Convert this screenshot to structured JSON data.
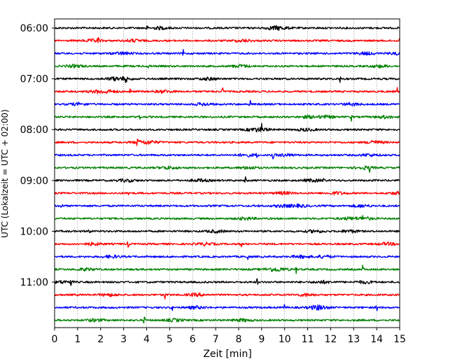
{
  "chart_data": {
    "type": "line",
    "xlabel": "Zeit  [min]",
    "ylabel": "UTC (Lokalzeit = UTC + 02:00)",
    "xlim": [
      0,
      15
    ],
    "x_ticks": [
      "0",
      "1",
      "2",
      "3",
      "4",
      "5",
      "6",
      "7",
      "8",
      "9",
      "10",
      "11",
      "12",
      "13",
      "14",
      "15"
    ],
    "y_ticks": [
      "06:00",
      "07:00",
      "08:00",
      "09:00",
      "10:00",
      "11:00"
    ],
    "trace_interval_minutes": 15,
    "grid": "vertical dotted",
    "colors": [
      "#000000",
      "#ff0000",
      "#0000ff",
      "#008000"
    ],
    "traces": [
      {
        "start": "06:00",
        "color": "#000000",
        "spikes": [
          4.0
        ]
      },
      {
        "start": "06:15",
        "color": "#ff0000",
        "spikes": [
          1.9,
          15.0
        ]
      },
      {
        "start": "06:30",
        "color": "#0000ff",
        "spikes": [
          5.6
        ]
      },
      {
        "start": "06:45",
        "color": "#008000",
        "spikes": [
          4.1
        ]
      },
      {
        "start": "07:00",
        "color": "#000000",
        "spikes": [
          3.1,
          12.4
        ]
      },
      {
        "start": "07:15",
        "color": "#ff0000",
        "spikes": [
          3.3,
          7.3,
          14.9
        ]
      },
      {
        "start": "07:30",
        "color": "#0000ff",
        "spikes": [
          8.5
        ]
      },
      {
        "start": "07:45",
        "color": "#008000",
        "spikes": [
          3.7,
          12.9
        ]
      },
      {
        "start": "08:00",
        "color": "#000000",
        "spikes": [
          9.0
        ]
      },
      {
        "start": "08:15",
        "color": "#ff0000",
        "spikes": [
          3.6,
          13.8
        ]
      },
      {
        "start": "08:30",
        "color": "#0000ff",
        "spikes": [
          8.8,
          9.5
        ]
      },
      {
        "start": "08:45",
        "color": "#008000",
        "spikes": [
          13.7
        ]
      },
      {
        "start": "09:00",
        "color": "#000000",
        "spikes": [
          8.3,
          11.7
        ]
      },
      {
        "start": "09:15",
        "color": "#ff0000",
        "spikes": [
          3.2
        ]
      },
      {
        "start": "09:30",
        "color": "#0000ff",
        "spikes": [
          0.3,
          8.9
        ]
      },
      {
        "start": "09:45",
        "color": "#008000",
        "spikes": [
          13.4
        ]
      },
      {
        "start": "10:00",
        "color": "#000000",
        "spikes": [
          1.5
        ]
      },
      {
        "start": "10:15",
        "color": "#ff0000",
        "spikes": [
          3.2,
          8.1
        ]
      },
      {
        "start": "10:30",
        "color": "#0000ff",
        "spikes": [
          8.4
        ]
      },
      {
        "start": "10:45",
        "color": "#008000",
        "spikes": [
          10.5,
          13.4
        ]
      },
      {
        "start": "11:00",
        "color": "#000000",
        "spikes": [
          0.7,
          8.8
        ]
      },
      {
        "start": "11:15",
        "color": "#ff0000",
        "spikes": [
          4.8
        ]
      },
      {
        "start": "11:30",
        "color": "#0000ff",
        "spikes": [
          5.1,
          10.0,
          14.0
        ]
      },
      {
        "start": "11:45",
        "color": "#008000",
        "spikes": [
          3.9
        ]
      }
    ]
  }
}
